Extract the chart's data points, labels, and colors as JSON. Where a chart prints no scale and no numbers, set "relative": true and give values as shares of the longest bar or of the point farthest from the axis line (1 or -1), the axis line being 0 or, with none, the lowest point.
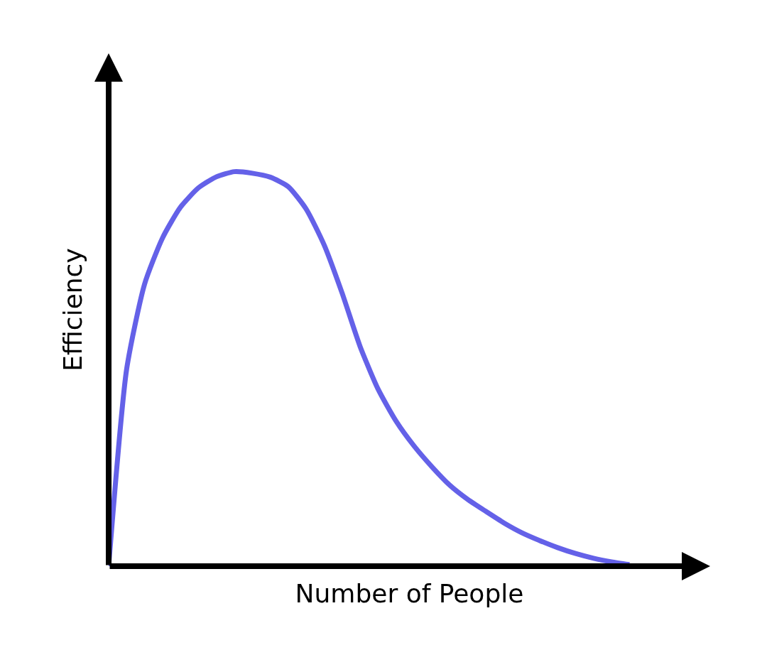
{
  "chart_data": {
    "type": "line",
    "relative": true,
    "xlabel": "Number of People",
    "ylabel": "Efficiency",
    "categories": [
      null,
      null,
      null,
      null,
      null,
      null,
      null,
      null,
      null,
      null,
      null,
      null,
      null,
      null,
      null,
      null,
      null,
      null,
      null,
      null,
      null,
      null,
      null,
      null,
      null,
      null,
      null,
      null,
      null,
      null
    ],
    "series": [
      {
        "color": "#6461e8",
        "values": [
          0,
          0.499,
          0.715,
          0.832,
          0.91,
          0.959,
          0.987,
          1,
          0.996,
          0.986,
          0.962,
          0.905,
          0.814,
          0.692,
          0.557,
          0.449,
          0.368,
          0.305,
          0.252,
          0.205,
          0.169,
          0.139,
          0.11,
          0.085,
          0.065,
          0.047,
          0.032,
          0.02,
          0.011,
          0.004
        ]
      }
    ],
    "legend": false,
    "marker": "none",
    "line_style": "solid"
  }
}
